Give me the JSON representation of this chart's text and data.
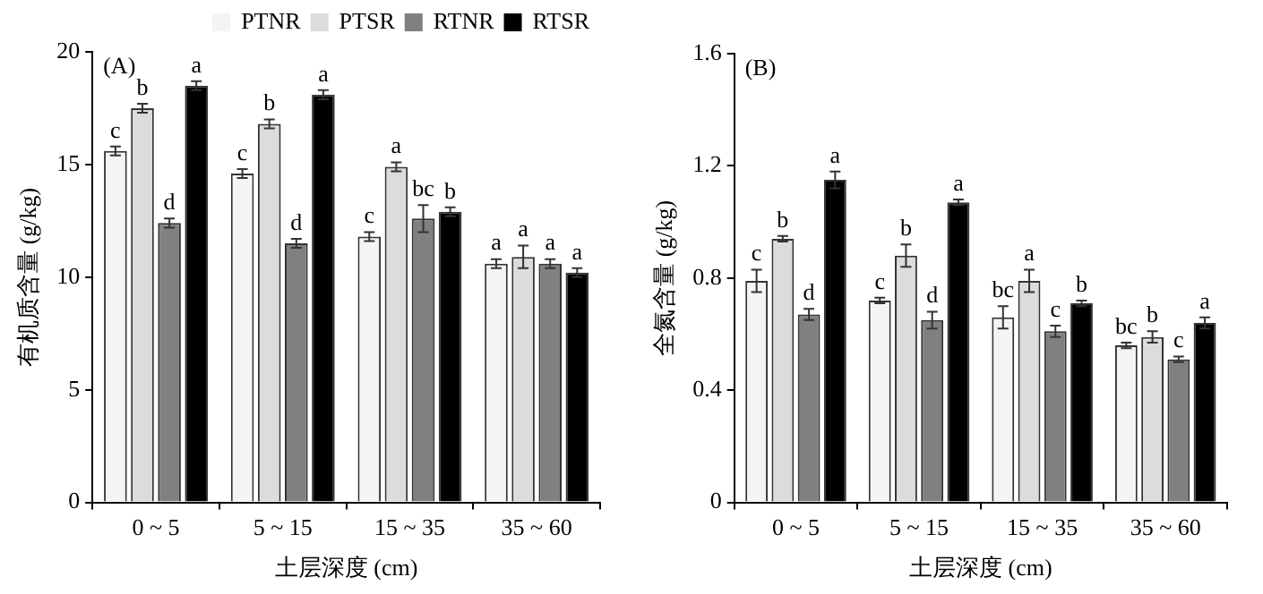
{
  "chart_data": [
    {
      "type": "bar",
      "ylabel": "有机质含量 (g/kg)",
      "xlabel": "土层深度 (cm)",
      "annotations": [
        "(A)"
      ],
      "categories": [
        "0 ~ 5",
        "5 ~ 15",
        "15 ~ 35",
        "35 ~ 60"
      ],
      "ylim": [
        0,
        20
      ],
      "yticks": [
        0,
        5,
        10,
        15,
        20
      ],
      "grid": false,
      "legend": "top",
      "series": [
        {
          "name": "PTNR",
          "color": "#f4f4f4",
          "values": [
            15.6,
            14.6,
            11.8,
            10.6
          ],
          "errors": [
            0.2,
            0.2,
            0.2,
            0.2
          ],
          "value_labels": [
            "c",
            "c",
            "c",
            "a"
          ]
        },
        {
          "name": "PTSR",
          "color": "#dcdcdc",
          "values": [
            17.5,
            16.8,
            14.9,
            10.9
          ],
          "errors": [
            0.2,
            0.2,
            0.2,
            0.5
          ],
          "value_labels": [
            "b",
            "b",
            "a",
            "a"
          ]
        },
        {
          "name": "RTNR",
          "color": "#808080",
          "values": [
            12.4,
            11.5,
            12.6,
            10.6
          ],
          "errors": [
            0.2,
            0.2,
            0.6,
            0.2
          ],
          "value_labels": [
            "d",
            "d",
            "bc",
            "a"
          ]
        },
        {
          "name": "RTSR",
          "color": "#000000",
          "values": [
            18.5,
            18.1,
            12.9,
            10.2
          ],
          "errors": [
            0.2,
            0.2,
            0.2,
            0.2
          ],
          "value_labels": [
            "a",
            "a",
            "b",
            "a"
          ]
        }
      ]
    },
    {
      "type": "bar",
      "ylabel": "全氮含量 (g/kg)",
      "xlabel": "土层深度 (cm)",
      "annotations": [
        "(B)"
      ],
      "categories": [
        "0 ~ 5",
        "5 ~ 15",
        "15 ~ 35",
        "35 ~ 60"
      ],
      "ylim": [
        0,
        1.6
      ],
      "yticks": [
        0,
        0.4,
        0.8,
        1.2,
        1.6
      ],
      "grid": false,
      "series": [
        {
          "color": "#f4f4f4",
          "values": [
            0.79,
            0.72,
            0.66,
            0.56
          ],
          "errors": [
            0.04,
            0.01,
            0.04,
            0.01
          ],
          "value_labels": [
            "c",
            "c",
            "bc",
            "bc"
          ]
        },
        {
          "color": "#dcdcdc",
          "values": [
            0.94,
            0.88,
            0.79,
            0.59
          ],
          "errors": [
            0.01,
            0.04,
            0.04,
            0.02
          ],
          "value_labels": [
            "b",
            "b",
            "a",
            "b"
          ]
        },
        {
          "color": "#808080",
          "values": [
            0.67,
            0.65,
            0.61,
            0.51
          ],
          "errors": [
            0.02,
            0.03,
            0.02,
            0.01
          ],
          "value_labels": [
            "d",
            "d",
            "c",
            "c"
          ]
        },
        {
          "color": "#000000",
          "values": [
            1.15,
            1.07,
            0.71,
            0.64
          ],
          "errors": [
            0.03,
            0.01,
            0.01,
            0.02
          ],
          "value_labels": [
            "a",
            "a",
            "b",
            "a"
          ]
        }
      ]
    }
  ]
}
